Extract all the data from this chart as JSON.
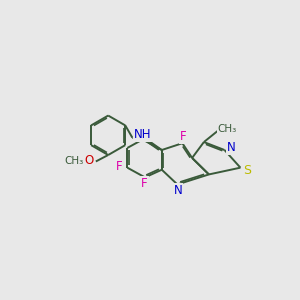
{
  "bg_color": "#e8e8e8",
  "bond_color": "#3a5a3a",
  "bond_width": 1.4,
  "atom_colors": {
    "F": "#dd00aa",
    "N": "#0000cc",
    "S": "#bbbb00",
    "O": "#cc0000",
    "C": "#3a5a3a"
  },
  "font_size": 8.5,
  "fig_size": [
    3.0,
    3.0
  ],
  "dpi": 100,
  "xlim": [
    0,
    10
  ],
  "ylim": [
    0,
    10
  ]
}
